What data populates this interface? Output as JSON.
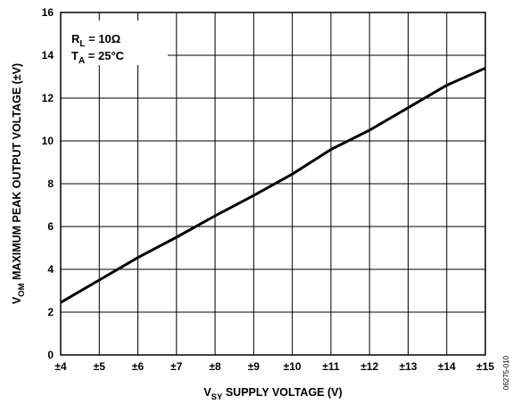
{
  "chart_data": {
    "type": "line",
    "xlabel": {
      "main": "V",
      "sub": "SY",
      "rest": " SUPPLY VOLTAGE (V)"
    },
    "ylabel": {
      "main": "V",
      "sub": "OM",
      "rest": " MAXIMUM PEAK OUTPUT VOLTAGE (±V)"
    },
    "xlim": [
      4,
      15
    ],
    "ylim": [
      0,
      16
    ],
    "x_ticks": [
      "±4",
      "±5",
      "±6",
      "±7",
      "±8",
      "±9",
      "±10",
      "±11",
      "±12",
      "±13",
      "±14",
      "±15"
    ],
    "y_ticks": [
      "0",
      "2",
      "4",
      "6",
      "8",
      "10",
      "12",
      "14",
      "16"
    ],
    "grid": true,
    "series": [
      {
        "x": [
          4,
          5,
          6,
          7,
          8,
          9,
          10,
          11,
          12,
          13,
          14,
          15
        ],
        "y": [
          2.45,
          3.5,
          4.55,
          5.5,
          6.5,
          7.45,
          8.45,
          9.6,
          10.5,
          11.55,
          12.6,
          13.4
        ]
      }
    ],
    "annotations": [
      {
        "main": "R",
        "sub": "L",
        "rest": " = 10Ω"
      },
      {
        "main": "T",
        "sub": "A",
        "rest": " = 25°C"
      }
    ],
    "figure_id": "06275-010",
    "colors": {
      "line": "#000000",
      "grid": "#000000",
      "background": "#ffffff"
    }
  }
}
